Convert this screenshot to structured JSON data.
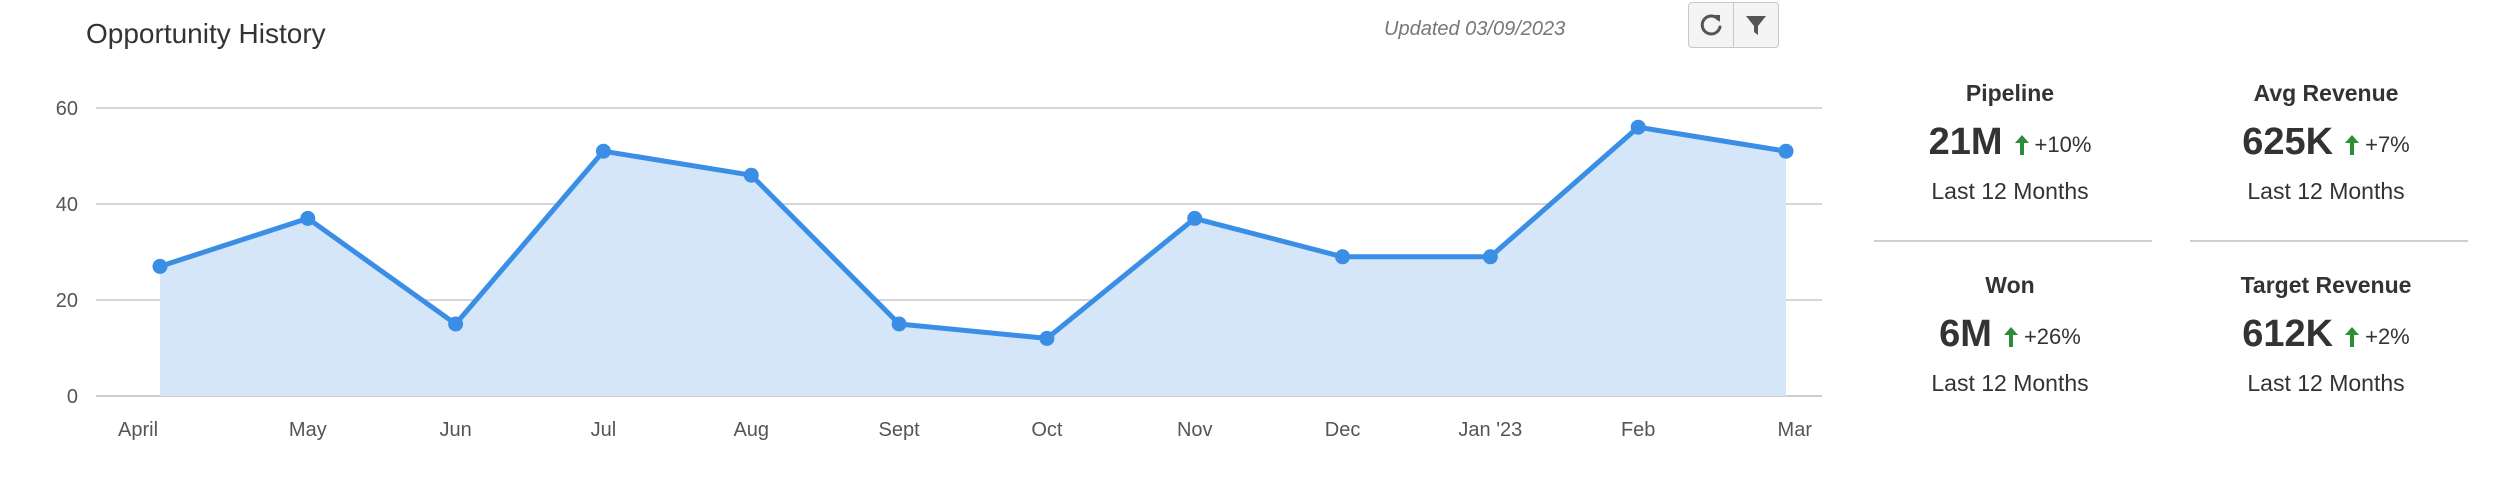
{
  "header": {
    "title": "Opportunity History",
    "updated": "Updated 03/09/2023"
  },
  "toolbar": {
    "icons": [
      "refresh-icon",
      "filter-icon"
    ]
  },
  "chart_data": {
    "type": "area",
    "title": "Opportunity History",
    "xlabel": "",
    "ylabel": "",
    "categories": [
      "April",
      "May",
      "Jun",
      "Jul",
      "Aug",
      "Sept",
      "Oct",
      "Nov",
      "Dec",
      "Jan '23",
      "Feb",
      "Mar"
    ],
    "values": [
      27,
      37,
      15,
      51,
      46,
      15,
      12,
      37,
      29,
      29,
      56,
      51
    ],
    "ylim": [
      0,
      60
    ],
    "yticks": [
      0,
      20,
      40,
      60
    ],
    "grid": true,
    "legend": "none",
    "line_color": "#3a8ee6",
    "fill_color": "#d4e6f8"
  },
  "kpis": [
    {
      "label": "Pipeline",
      "value": "21M",
      "change": "+10%",
      "period": "Last 12 Months"
    },
    {
      "label": "Avg Revenue",
      "value": "625K",
      "change": "+7%",
      "period": "Last 12 Months"
    },
    {
      "label": "Won",
      "value": "6M",
      "change": "+26%",
      "period": "Last 12 Months"
    },
    {
      "label": "Target Revenue",
      "value": "612K",
      "change": "+2%",
      "period": "Last 12 Months"
    }
  ],
  "colors": {
    "up_arrow": "#2e8b3a",
    "text": "#333333",
    "grid": "#c8c8c8"
  }
}
